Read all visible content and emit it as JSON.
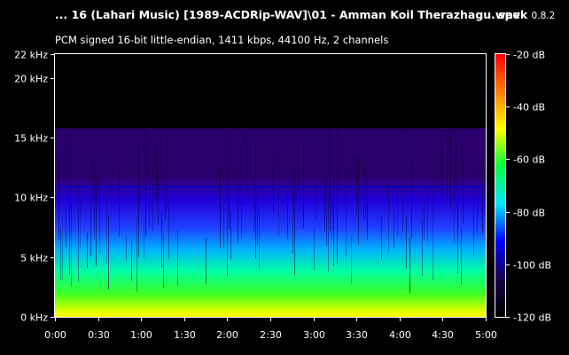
{
  "header": {
    "file_title": "... 16 (Lahari Music) [1989-ACDRip-WAV]\\01 - Amman Koil Therazhagu.wav",
    "app_name": "spek",
    "app_version": "0.8.2",
    "stream_info": "PCM signed 16-bit little-endian, 1411 kbps, 44100 Hz, 2 channels"
  },
  "chart_data": {
    "type": "heatmap",
    "title": "",
    "x_axis": {
      "range_seconds": [
        0,
        300
      ],
      "ticks": [
        {
          "value": 0,
          "label": "0:00"
        },
        {
          "value": 30,
          "label": "0:30"
        },
        {
          "value": 60,
          "label": "1:00"
        },
        {
          "value": 90,
          "label": "1:30"
        },
        {
          "value": 120,
          "label": "2:00"
        },
        {
          "value": 150,
          "label": "2:30"
        },
        {
          "value": 180,
          "label": "3:00"
        },
        {
          "value": 210,
          "label": "3:30"
        },
        {
          "value": 240,
          "label": "4:00"
        },
        {
          "value": 270,
          "label": "4:30"
        },
        {
          "value": 300,
          "label": "5:00"
        }
      ]
    },
    "y_axis": {
      "range_khz": [
        0,
        22
      ],
      "ticks": [
        {
          "value": 0,
          "label": "0 kHz"
        },
        {
          "value": 5,
          "label": "5 kHz"
        },
        {
          "value": 10,
          "label": "10 kHz"
        },
        {
          "value": 15,
          "label": "15 kHz"
        },
        {
          "value": 20,
          "label": "20 kHz"
        },
        {
          "value": 22,
          "label": "22 kHz"
        }
      ]
    },
    "color_scale": {
      "range_db": [
        -120,
        -20
      ],
      "ticks": [
        {
          "value": -20,
          "label": "-20 dB"
        },
        {
          "value": -40,
          "label": "-40 dB"
        },
        {
          "value": -60,
          "label": "-60 dB"
        },
        {
          "value": -80,
          "label": "-80 dB"
        },
        {
          "value": -100,
          "label": "-100 dB"
        },
        {
          "value": -120,
          "label": "-120 dB"
        }
      ],
      "stops": [
        "#000000",
        "#1a004a",
        "#0000ff",
        "#00e5ff",
        "#00ff40",
        "#ffff00",
        "#ff8000",
        "#ff0000"
      ]
    },
    "cutoff_khz": 15.8,
    "duration_seconds": 300
  }
}
